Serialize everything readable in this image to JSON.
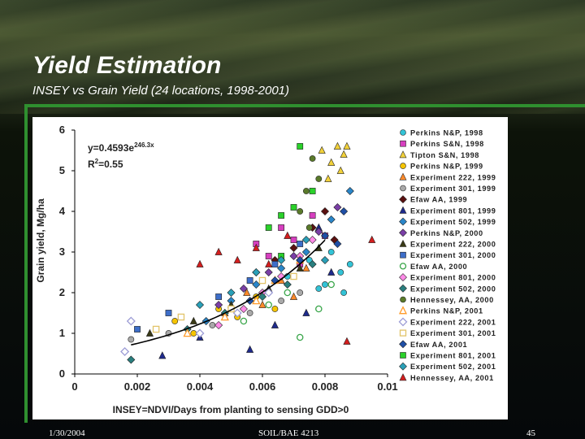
{
  "slide": {
    "title": "Yield Estimation",
    "subtitle": "INSEY vs Grain Yield (24 locations, 1998-2001)",
    "footer_date": "1/30/2004",
    "footer_course": "SOIL/BAE 4213",
    "footer_page": "45"
  },
  "chart_data": {
    "type": "scatter",
    "title": "",
    "xlabel": "INSEY=NDVI/Days from planting to sensing GDD>0",
    "ylabel": "Grain yield, Mg/ha",
    "xlim": [
      0,
      0.01
    ],
    "ylim": [
      0,
      6
    ],
    "xticks": [
      "0",
      "0.002",
      "0.004",
      "0.006",
      "0.008",
      "0.01"
    ],
    "yticks": [
      "0",
      "1",
      "2",
      "3",
      "4",
      "5",
      "6"
    ],
    "grid": false,
    "legend_position": "right",
    "equation_line1": "y=0.4593e",
    "equation_exp": "246.3x",
    "r2_label": "R",
    "r2_sup": "2",
    "r2_value": "=0.55",
    "fit": {
      "a": 0.4593,
      "b": 246.3,
      "x_range": [
        0.0018,
        0.008
      ],
      "color": "#000000"
    },
    "series": [
      {
        "name": "Perkins N&P, 1998",
        "shape": "circle",
        "color": "#33c3d6",
        "points": [
          [
            0.0068,
            2.4
          ],
          [
            0.0075,
            2.8
          ],
          [
            0.008,
            2.2
          ],
          [
            0.0082,
            3.0
          ],
          [
            0.0085,
            2.5
          ],
          [
            0.0086,
            2.0
          ],
          [
            0.0088,
            2.7
          ],
          [
            0.0078,
            2.1
          ]
        ]
      },
      {
        "name": "Perkins S&N, 1998",
        "shape": "square",
        "color": "#d63fbf",
        "points": [
          [
            0.0058,
            3.2
          ],
          [
            0.0062,
            2.9
          ],
          [
            0.0066,
            3.6
          ],
          [
            0.007,
            3.3
          ],
          [
            0.0072,
            2.7
          ],
          [
            0.0076,
            3.9
          ],
          [
            0.008,
            3.4
          ]
        ]
      },
      {
        "name": "Tipton S&N, 1998",
        "shape": "triangle",
        "color": "#f2d13a",
        "points": [
          [
            0.0082,
            5.2
          ],
          [
            0.0084,
            5.6
          ],
          [
            0.0086,
            5.4
          ],
          [
            0.0087,
            5.6
          ],
          [
            0.0081,
            4.8
          ],
          [
            0.0079,
            5.5
          ],
          [
            0.0085,
            5.0
          ]
        ]
      },
      {
        "name": "Perkins N&P, 1999",
        "shape": "circle",
        "color": "#f5c400",
        "points": [
          [
            0.0032,
            1.3
          ],
          [
            0.0038,
            1.0
          ],
          [
            0.0046,
            1.6
          ],
          [
            0.0052,
            1.4
          ],
          [
            0.0058,
            1.9
          ],
          [
            0.0064,
            1.6
          ]
        ]
      },
      {
        "name": "Experiment 222, 1999",
        "shape": "triangle",
        "color": "#ff8a2a",
        "points": [
          [
            0.0048,
            1.5
          ],
          [
            0.0055,
            2.0
          ],
          [
            0.006,
            1.7
          ],
          [
            0.0066,
            2.3
          ],
          [
            0.007,
            1.9
          ],
          [
            0.0074,
            2.6
          ]
        ]
      },
      {
        "name": "Experiment 301, 1999",
        "shape": "circle",
        "color": "#a9a9a9",
        "points": [
          [
            0.0018,
            0.85
          ],
          [
            0.003,
            1.0
          ],
          [
            0.0044,
            1.2
          ],
          [
            0.0056,
            1.5
          ],
          [
            0.0066,
            1.8
          ],
          [
            0.0072,
            2.0
          ]
        ]
      },
      {
        "name": "Efaw AA, 1999",
        "shape": "diamond",
        "color": "#5a1010",
        "points": [
          [
            0.0058,
            2.5
          ],
          [
            0.0064,
            2.8
          ],
          [
            0.007,
            3.1
          ],
          [
            0.0076,
            3.6
          ],
          [
            0.008,
            4.0
          ],
          [
            0.0083,
            3.3
          ]
        ]
      },
      {
        "name": "Experiment 801, 1999",
        "shape": "triangle",
        "color": "#1e2a8c",
        "points": [
          [
            0.0028,
            0.45
          ],
          [
            0.004,
            0.9
          ],
          [
            0.0056,
            0.6
          ],
          [
            0.0064,
            1.2
          ],
          [
            0.0074,
            1.5
          ],
          [
            0.0082,
            2.5
          ],
          [
            0.0078,
            3.6
          ]
        ]
      },
      {
        "name": "Experiment 502, 1999",
        "shape": "diamond",
        "color": "#2a86c9",
        "points": [
          [
            0.0042,
            1.3
          ],
          [
            0.005,
            1.8
          ],
          [
            0.0058,
            2.2
          ],
          [
            0.0066,
            2.6
          ],
          [
            0.0074,
            3.0
          ],
          [
            0.0082,
            3.8
          ],
          [
            0.0088,
            4.5
          ]
        ]
      },
      {
        "name": "Perkins N&P, 2000",
        "shape": "diamond",
        "color": "#7a3fa6",
        "points": [
          [
            0.0046,
            1.7
          ],
          [
            0.0054,
            2.1
          ],
          [
            0.0062,
            2.5
          ],
          [
            0.007,
            2.9
          ],
          [
            0.0078,
            3.5
          ],
          [
            0.0084,
            4.1
          ]
        ]
      },
      {
        "name": "Experiment 222, 2000",
        "shape": "triangle",
        "color": "#3a3a16",
        "points": [
          [
            0.0024,
            1.0
          ],
          [
            0.0038,
            1.3
          ],
          [
            0.005,
            1.7
          ],
          [
            0.0062,
            2.1
          ],
          [
            0.0072,
            2.6
          ],
          [
            0.0078,
            3.1
          ]
        ]
      },
      {
        "name": "Experiment 301, 2000",
        "shape": "square",
        "color": "#3d6ec9",
        "points": [
          [
            0.002,
            1.1
          ],
          [
            0.003,
            1.5
          ],
          [
            0.0046,
            1.9
          ],
          [
            0.0056,
            2.3
          ],
          [
            0.0064,
            2.7
          ],
          [
            0.0072,
            3.2
          ]
        ]
      },
      {
        "name": "Efaw AA, 2000",
        "shape": "circle-open",
        "color": "#3aa64a",
        "points": [
          [
            0.0054,
            1.3
          ],
          [
            0.0062,
            1.7
          ],
          [
            0.0068,
            2.0
          ],
          [
            0.0072,
            0.9
          ],
          [
            0.0078,
            1.6
          ],
          [
            0.0082,
            2.2
          ]
        ]
      },
      {
        "name": "Experiment 801, 2000",
        "shape": "diamond",
        "color": "#ff8ae6",
        "points": [
          [
            0.0046,
            1.2
          ],
          [
            0.0054,
            1.6
          ],
          [
            0.006,
            2.0
          ],
          [
            0.0066,
            2.4
          ],
          [
            0.0072,
            2.9
          ],
          [
            0.0076,
            3.3
          ]
        ]
      },
      {
        "name": "Experiment 502, 2000",
        "shape": "diamond",
        "color": "#2a7f7f",
        "points": [
          [
            0.0018,
            0.35
          ],
          [
            0.0036,
            1.1
          ],
          [
            0.0048,
            1.5
          ],
          [
            0.006,
            1.9
          ],
          [
            0.0068,
            2.2
          ],
          [
            0.0076,
            2.7
          ]
        ]
      },
      {
        "name": "Hennessey, AA, 2000",
        "shape": "circle",
        "color": "#5a7a2a",
        "points": [
          [
            0.0072,
            4.0
          ],
          [
            0.0074,
            4.5
          ],
          [
            0.0076,
            5.3
          ],
          [
            0.0078,
            4.8
          ],
          [
            0.0075,
            3.6
          ]
        ]
      },
      {
        "name": "Perkins N&P, 2001",
        "shape": "triangle-open",
        "color": "#ff9b2a",
        "points": [
          [
            0.0036,
            1.0
          ],
          [
            0.0048,
            1.4
          ],
          [
            0.0058,
            1.8
          ],
          [
            0.0064,
            2.3
          ],
          [
            0.0072,
            2.8
          ]
        ]
      },
      {
        "name": "Experiment 222, 2001",
        "shape": "diamond-open",
        "color": "#9d9dd6",
        "points": [
          [
            0.0016,
            0.55
          ],
          [
            0.0018,
            1.3
          ],
          [
            0.004,
            1.0
          ],
          [
            0.0052,
            1.5
          ],
          [
            0.0062,
            2.0
          ]
        ]
      },
      {
        "name": "Experiment 301, 2001",
        "shape": "square-open",
        "color": "#e2c46a",
        "points": [
          [
            0.0026,
            1.1
          ],
          [
            0.0034,
            1.4
          ],
          [
            0.005,
            1.6
          ],
          [
            0.006,
            2.3
          ],
          [
            0.007,
            2.4
          ]
        ]
      },
      {
        "name": "Efaw AA, 2001",
        "shape": "diamond",
        "color": "#1f4fa6",
        "points": [
          [
            0.0056,
            1.8
          ],
          [
            0.0064,
            2.3
          ],
          [
            0.0072,
            2.8
          ],
          [
            0.008,
            3.4
          ],
          [
            0.0086,
            4.0
          ],
          [
            0.0084,
            3.2
          ]
        ]
      },
      {
        "name": "Experiment 801, 2001",
        "shape": "square",
        "color": "#2ad12a",
        "points": [
          [
            0.0062,
            3.6
          ],
          [
            0.0066,
            3.9
          ],
          [
            0.007,
            4.1
          ],
          [
            0.0072,
            5.6
          ],
          [
            0.0076,
            4.5
          ],
          [
            0.0066,
            2.9
          ]
        ]
      },
      {
        "name": "Experiment 502, 2001",
        "shape": "diamond",
        "color": "#2aa0b8",
        "points": [
          [
            0.004,
            1.7
          ],
          [
            0.005,
            2.0
          ],
          [
            0.0058,
            2.5
          ],
          [
            0.0066,
            2.8
          ],
          [
            0.0074,
            3.3
          ],
          [
            0.008,
            2.8
          ]
        ]
      },
      {
        "name": "Hennessey, AA, 2001",
        "shape": "triangle",
        "color": "#d41e1e",
        "points": [
          [
            0.004,
            2.7
          ],
          [
            0.0046,
            3.0
          ],
          [
            0.0052,
            2.8
          ],
          [
            0.0058,
            3.1
          ],
          [
            0.0068,
            3.4
          ],
          [
            0.0095,
            3.3
          ],
          [
            0.0087,
            0.8
          ],
          [
            0.0062,
            2.7
          ]
        ]
      }
    ]
  }
}
